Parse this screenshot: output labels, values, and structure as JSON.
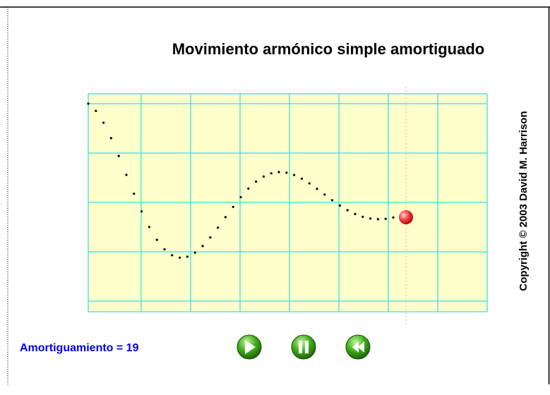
{
  "title": "Movimiento armónico simple amortiguado",
  "copyright": "Copyright © 2003 David M. Harrison",
  "damping": "Amortiguamiento = 19"
}
